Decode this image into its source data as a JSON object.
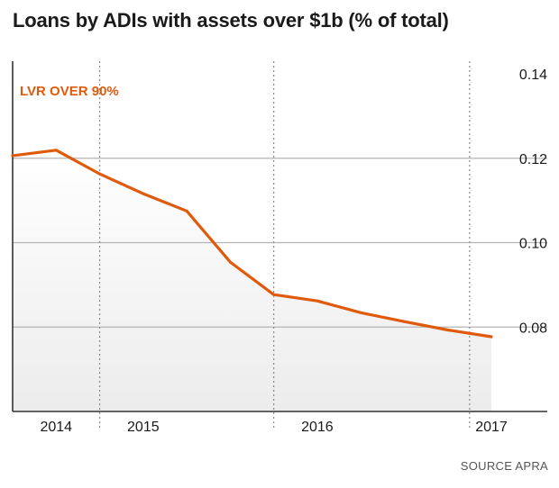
{
  "title": "Loans by ADIs with assets over $1b (% of total)",
  "source": "SOURCE APRA",
  "colors": {
    "series": "#e05a0c",
    "grid": "#b4b4b4",
    "axis": "#333333",
    "fill_top": "#ececec"
  },
  "chart_data": {
    "type": "line",
    "title": "Loans by ADIs with assets over $1b (% of total)",
    "xlabel": "",
    "ylabel": "",
    "ylim": [
      0.06,
      0.14
    ],
    "yticks": [
      0.14,
      0.12,
      0.1,
      0.08
    ],
    "ytick_labels": [
      "0.14",
      "0.12",
      "0.10",
      "0.08"
    ],
    "xticks": [
      {
        "label": "2014",
        "x": 0.5
      },
      {
        "label": "2015",
        "x": 2.5
      },
      {
        "label": "2016",
        "x": 6.5
      },
      {
        "label": "2017",
        "x": 10.5
      }
    ],
    "year_dividers": [
      1.5,
      5.5,
      10
    ],
    "grid": true,
    "y_axis_side": "right",
    "series": [
      {
        "name": "LVR OVER 90%",
        "x": [
          -0.5,
          0.5,
          1.5,
          2.5,
          3.5,
          4.5,
          5.5,
          6.5,
          7.5,
          8.5,
          9.5,
          10.5
        ],
        "values": [
          0.1206,
          0.1219,
          0.1163,
          0.1116,
          0.1075,
          0.0954,
          0.0877,
          0.0862,
          0.0834,
          0.0813,
          0.0793,
          0.0777
        ]
      }
    ]
  }
}
